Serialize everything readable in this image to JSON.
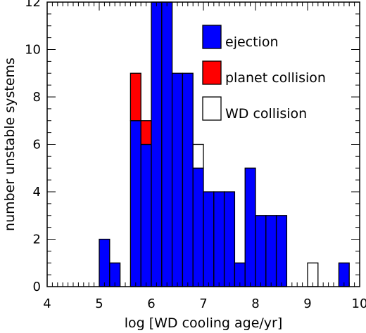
{
  "chart_data": {
    "type": "bar",
    "xlabel": "log [WD cooling age/yr]",
    "ylabel": "number unstable systems",
    "xlim": [
      4,
      10
    ],
    "ylim": [
      0,
      12
    ],
    "x_ticks": [
      4,
      5,
      6,
      7,
      8,
      9,
      10
    ],
    "y_ticks": [
      0,
      2,
      4,
      6,
      8,
      10,
      12
    ],
    "bin_width": 0.2,
    "bins": [
      {
        "x0": 5.0,
        "x1": 5.2,
        "ejection": 2,
        "planet_collision": 0,
        "wd_collision": 0
      },
      {
        "x0": 5.2,
        "x1": 5.4,
        "ejection": 1,
        "planet_collision": 0,
        "wd_collision": 0
      },
      {
        "x0": 5.4,
        "x1": 5.6,
        "ejection": 0,
        "planet_collision": 0,
        "wd_collision": 0
      },
      {
        "x0": 5.6,
        "x1": 5.8,
        "ejection": 7,
        "planet_collision": 2,
        "wd_collision": 0
      },
      {
        "x0": 5.8,
        "x1": 6.0,
        "ejection": 6,
        "planet_collision": 1,
        "wd_collision": 0
      },
      {
        "x0": 6.0,
        "x1": 6.2,
        "ejection": 12,
        "planet_collision": 0,
        "wd_collision": 0
      },
      {
        "x0": 6.2,
        "x1": 6.4,
        "ejection": 12,
        "planet_collision": 0,
        "wd_collision": 0
      },
      {
        "x0": 6.4,
        "x1": 6.6,
        "ejection": 9,
        "planet_collision": 0,
        "wd_collision": 0
      },
      {
        "x0": 6.6,
        "x1": 6.8,
        "ejection": 9,
        "planet_collision": 0,
        "wd_collision": 0
      },
      {
        "x0": 6.8,
        "x1": 7.0,
        "ejection": 5,
        "planet_collision": 0,
        "wd_collision": 1
      },
      {
        "x0": 7.0,
        "x1": 7.2,
        "ejection": 4,
        "planet_collision": 0,
        "wd_collision": 0
      },
      {
        "x0": 7.2,
        "x1": 7.4,
        "ejection": 4,
        "planet_collision": 0,
        "wd_collision": 0
      },
      {
        "x0": 7.4,
        "x1": 7.6,
        "ejection": 4,
        "planet_collision": 0,
        "wd_collision": 0
      },
      {
        "x0": 7.6,
        "x1": 7.8,
        "ejection": 1,
        "planet_collision": 0,
        "wd_collision": 0
      },
      {
        "x0": 7.8,
        "x1": 8.0,
        "ejection": 5,
        "planet_collision": 0,
        "wd_collision": 0
      },
      {
        "x0": 8.0,
        "x1": 8.2,
        "ejection": 3,
        "planet_collision": 0,
        "wd_collision": 0
      },
      {
        "x0": 8.2,
        "x1": 8.4,
        "ejection": 3,
        "planet_collision": 0,
        "wd_collision": 0
      },
      {
        "x0": 8.4,
        "x1": 8.6,
        "ejection": 3,
        "planet_collision": 0,
        "wd_collision": 0
      },
      {
        "x0": 8.6,
        "x1": 8.8,
        "ejection": 0,
        "planet_collision": 0,
        "wd_collision": 0
      },
      {
        "x0": 8.8,
        "x1": 9.0,
        "ejection": 0,
        "planet_collision": 0,
        "wd_collision": 0
      },
      {
        "x0": 9.0,
        "x1": 9.2,
        "ejection": 0,
        "planet_collision": 0,
        "wd_collision": 1
      },
      {
        "x0": 9.2,
        "x1": 9.4,
        "ejection": 0,
        "planet_collision": 0,
        "wd_collision": 0
      },
      {
        "x0": 9.4,
        "x1": 9.6,
        "ejection": 0,
        "planet_collision": 0,
        "wd_collision": 0
      },
      {
        "x0": 9.6,
        "x1": 9.8,
        "ejection": 1,
        "planet_collision": 0,
        "wd_collision": 0
      }
    ],
    "series": [
      {
        "key": "ejection",
        "name": "ejection",
        "color": "#0000ff"
      },
      {
        "key": "planet_collision",
        "name": "planet collision",
        "color": "#ff0000"
      },
      {
        "key": "wd_collision",
        "name": "WD collision",
        "color": "#ffffff"
      }
    ],
    "legend_position": "top-right",
    "grid": false
  }
}
